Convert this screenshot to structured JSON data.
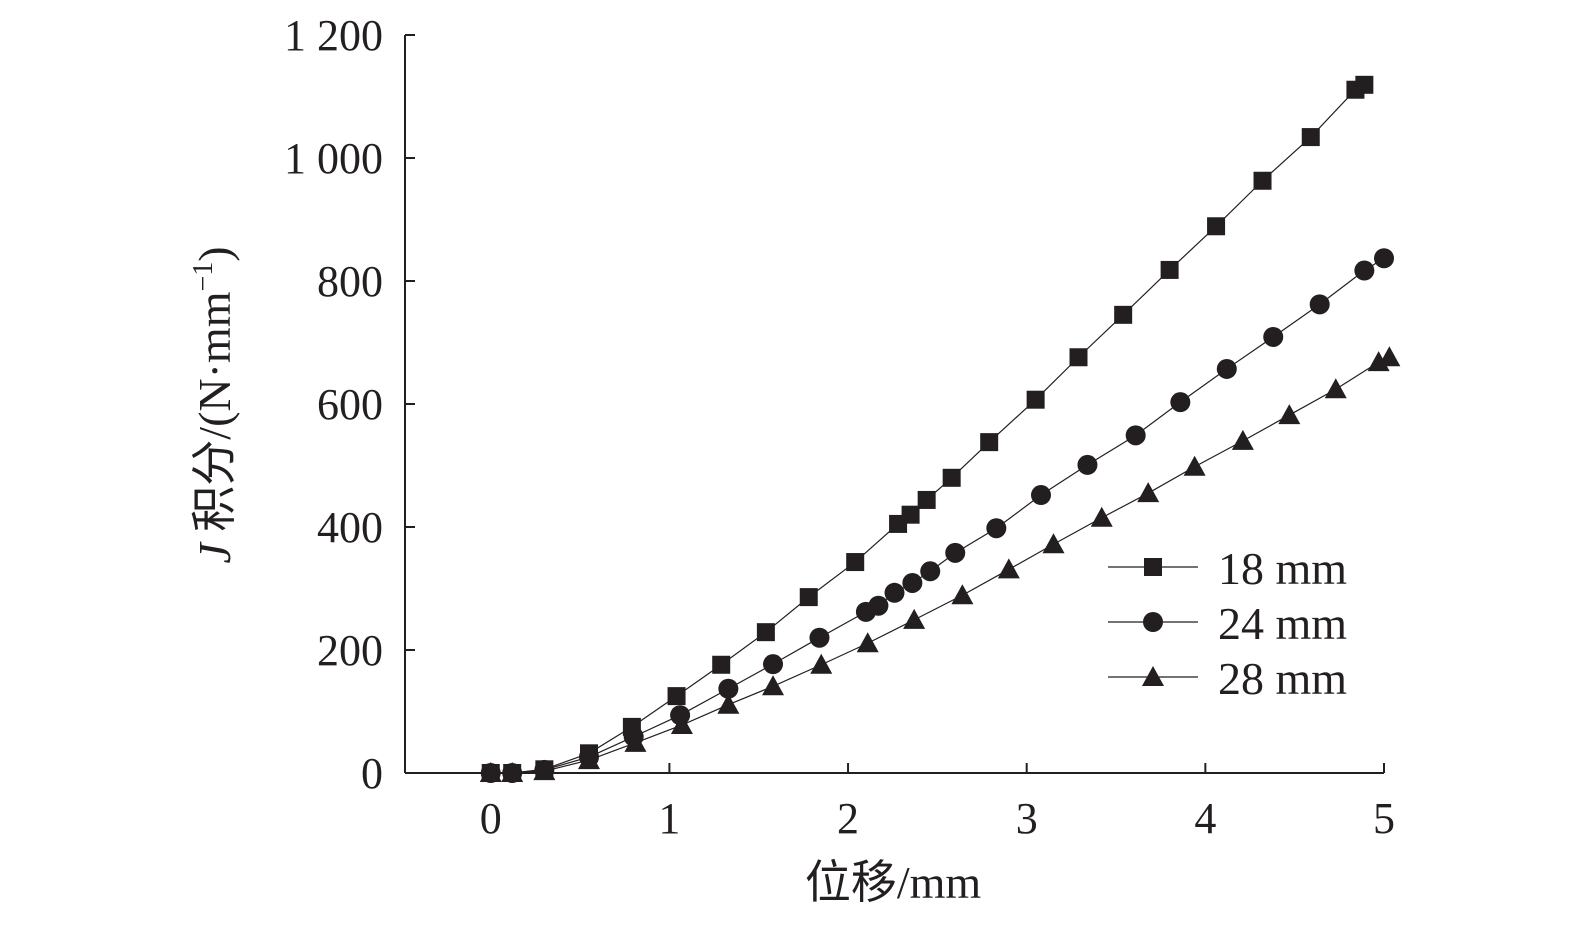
{
  "chart_data": {
    "type": "line",
    "title": "",
    "xlabel": "位移/mm",
    "ylabel_parts": {
      "italic": "J",
      "main": " 积分/(N·mm",
      "sup": "−1",
      "close": ")"
    },
    "xlim": [
      -0.48,
      5
    ],
    "ylim": [
      0,
      1200
    ],
    "xticks": [
      0,
      1,
      2,
      3,
      4,
      5
    ],
    "xtick_labels": [
      "0",
      "1",
      "2",
      "3",
      "4",
      "5"
    ],
    "yticks": [
      0,
      200,
      400,
      600,
      800,
      1000,
      1200
    ],
    "ytick_labels": [
      "0",
      "200",
      "400",
      "600",
      "800",
      "1 000",
      "1 200"
    ],
    "grid": false,
    "legend_position": "lower-right",
    "series": [
      {
        "name": "18 mm",
        "marker": "square",
        "x": [
          0,
          0.12,
          0.3,
          0.55,
          0.79,
          1.04,
          1.29,
          1.54,
          1.78,
          2.04,
          2.28,
          2.35,
          2.44,
          2.58,
          2.79,
          3.05,
          3.29,
          3.54,
          3.8,
          4.06,
          4.32,
          4.59,
          4.84,
          4.89
        ],
        "y": [
          0,
          0,
          6,
          32,
          75,
          125,
          176,
          229,
          286,
          343,
          405,
          420,
          444,
          480,
          538,
          607,
          676,
          745,
          818,
          889,
          963,
          1034,
          1111,
          1119
        ]
      },
      {
        "name": "24 mm",
        "marker": "circle",
        "x": [
          0,
          0.12,
          0.3,
          0.55,
          0.8,
          1.06,
          1.33,
          1.58,
          1.84,
          2.1,
          2.17,
          2.26,
          2.36,
          2.46,
          2.6,
          2.83,
          3.08,
          3.34,
          3.61,
          3.86,
          4.12,
          4.38,
          4.64,
          4.89,
          5.0
        ],
        "y": [
          0,
          0,
          5,
          26,
          59,
          94,
          137,
          177,
          220,
          262,
          272,
          293,
          309,
          328,
          358,
          398,
          452,
          501,
          549,
          603,
          657,
          709,
          762,
          817,
          837
        ]
      },
      {
        "name": "28 mm",
        "marker": "triangle",
        "x": [
          0,
          0.12,
          0.3,
          0.55,
          0.81,
          1.07,
          1.33,
          1.58,
          1.85,
          2.11,
          2.37,
          2.64,
          2.9,
          3.15,
          3.42,
          3.68,
          3.94,
          4.21,
          4.47,
          4.73,
          4.97,
          5.03
        ],
        "y": [
          0,
          0,
          3,
          21,
          49,
          78,
          111,
          141,
          176,
          211,
          249,
          289,
          331,
          372,
          415,
          455,
          498,
          540,
          582,
          624,
          668,
          676
        ]
      }
    ],
    "colors": {
      "ink": "#231f20"
    }
  }
}
